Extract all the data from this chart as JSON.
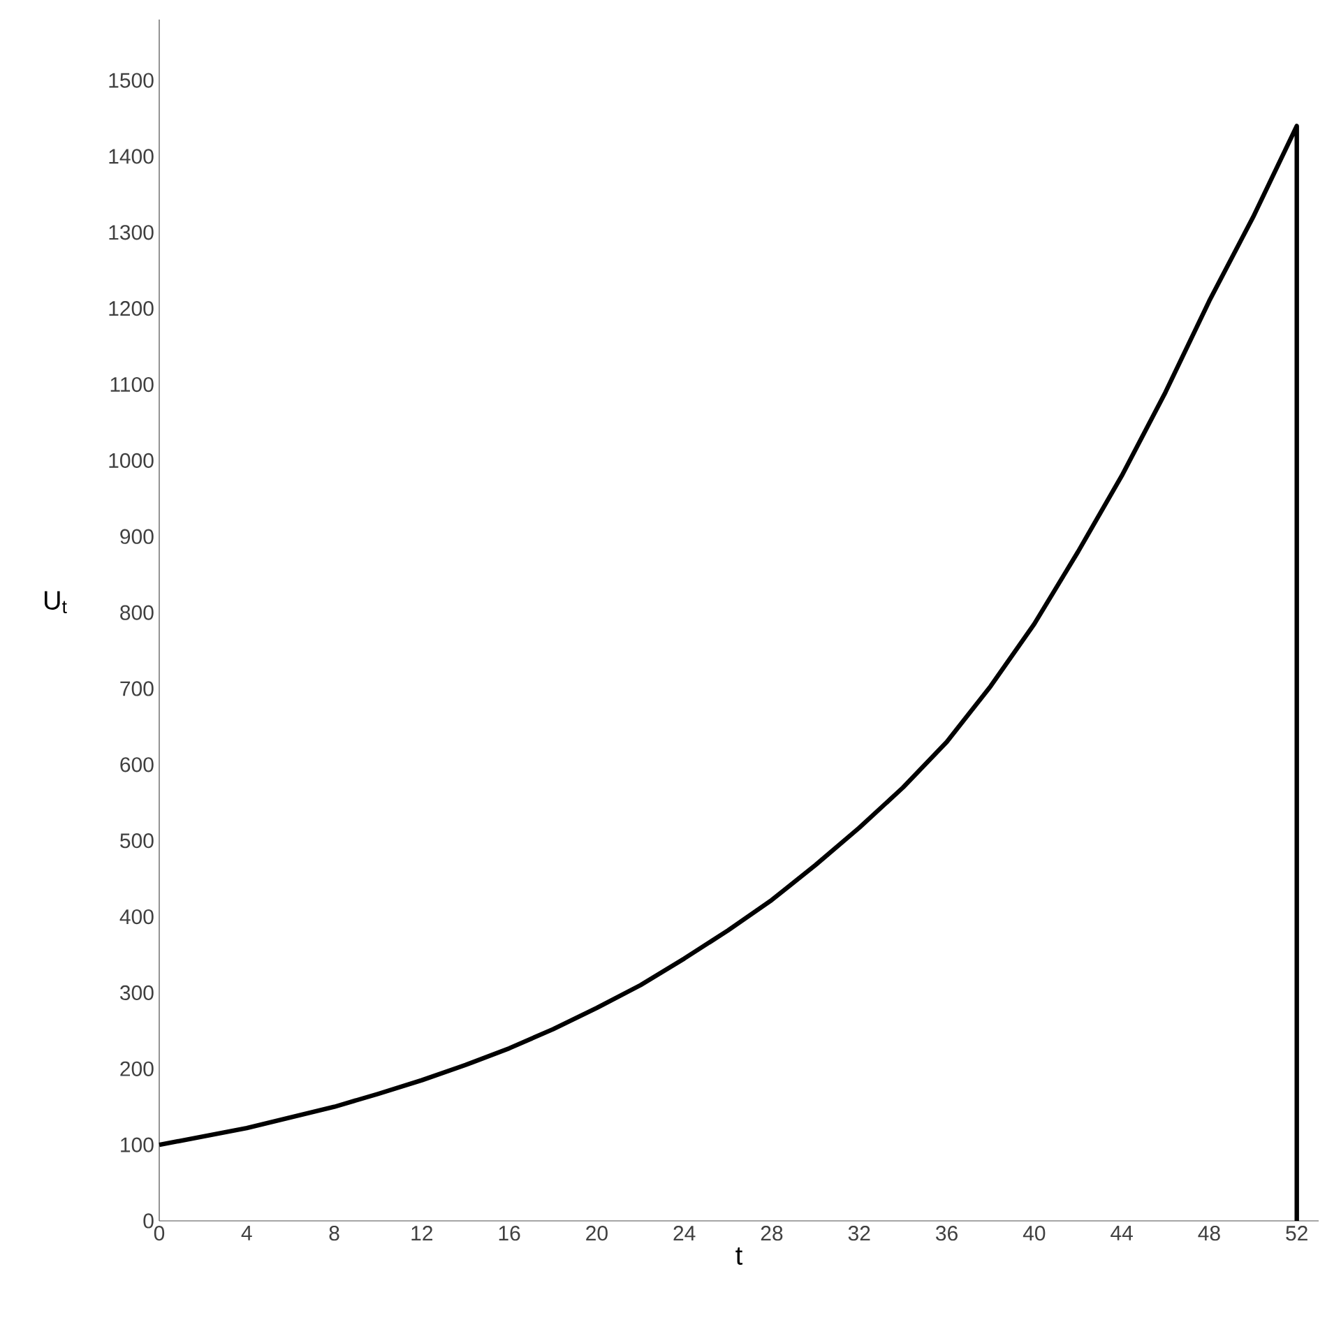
{
  "chart_data": {
    "type": "line",
    "xlabel": "t",
    "ylabel": "U$_{t}$",
    "x": [
      0,
      2,
      4,
      6,
      8,
      10,
      12,
      14,
      16,
      18,
      20,
      22,
      24,
      26,
      28,
      30,
      32,
      34,
      36,
      38,
      40,
      42,
      44,
      46,
      48,
      50,
      52,
      52
    ],
    "series": [
      {
        "color": "#000000",
        "values": [
          100,
          111,
          122,
          136,
          150,
          167,
          185,
          205,
          227,
          252,
          280,
          310,
          345,
          382,
          422,
          468,
          517,
          570,
          630,
          703,
          785,
          880,
          980,
          1090,
          1210,
          1320,
          1440,
          0
        ]
      }
    ],
    "xlim": [
      0,
      53
    ],
    "ylim": [
      0,
      1580
    ],
    "xticks": [
      0,
      4,
      8,
      12,
      16,
      20,
      24,
      28,
      32,
      36,
      40,
      44,
      48,
      52
    ],
    "yticks": [
      0,
      100,
      200,
      300,
      400,
      500,
      600,
      700,
      800,
      900,
      1000,
      1100,
      1200,
      1300,
      1400,
      1500
    ],
    "grid": false,
    "marker": "none",
    "line_style": "solid"
  }
}
